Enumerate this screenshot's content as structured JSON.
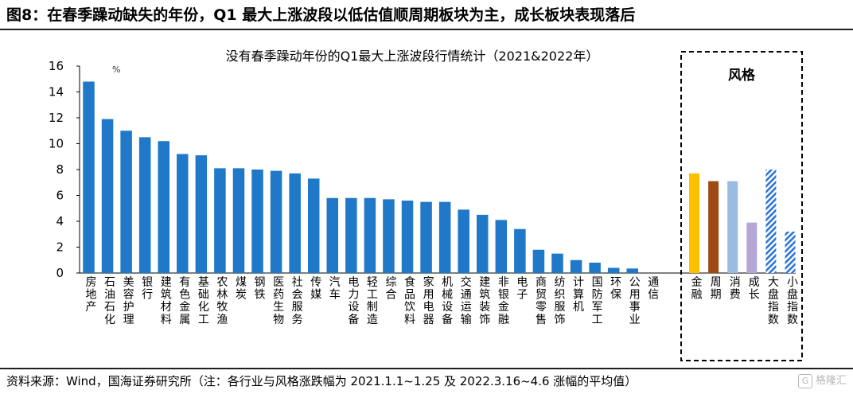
{
  "figure": {
    "title": "图8：在春季躁动缺失的年份，Q1 最大上涨波段以低估值顺周期板块为主，成长板块表现落后",
    "source": "资料来源：Wind，国海证券研究所（注：各行业与风格涨跌幅为 2021.1.1~1.25 及 2022.3.16~4.6 涨幅的平均值）",
    "watermark": "格隆汇"
  },
  "chart_data": {
    "type": "bar",
    "title": "没有春季躁动年份的Q1最大上涨波段行情统计（2021&2022年）",
    "ylabel": "%",
    "ylim": [
      0,
      16
    ],
    "yticks": [
      0,
      2,
      4,
      6,
      8,
      10,
      12,
      14,
      16
    ],
    "grid": false,
    "legend": "none",
    "categories": [
      "房地产",
      "石油石化",
      "美容护理",
      "银行",
      "建筑材料",
      "有色金属",
      "基础化工",
      "农林牧渔",
      "煤炭",
      "钢铁",
      "医药生物",
      "社会服务",
      "传媒",
      "汽车",
      "电力设备",
      "轻工制造",
      "综合",
      "食品饮料",
      "家用电器",
      "机械设备",
      "交通运输",
      "建筑装饰",
      "非银金融",
      "电子",
      "商贸零售",
      "纺织服饰",
      "计算机",
      "国防军工",
      "环保",
      "公用事业",
      "通信"
    ],
    "values": [
      14.8,
      11.9,
      11.0,
      10.5,
      10.2,
      9.2,
      9.1,
      8.1,
      8.1,
      8.0,
      7.9,
      7.7,
      7.3,
      5.8,
      5.8,
      5.8,
      5.7,
      5.6,
      5.5,
      5.5,
      4.9,
      4.5,
      4.1,
      3.4,
      1.8,
      1.5,
      1.0,
      0.8,
      0.4,
      0.35,
      0.0
    ],
    "bar_color": "#1f78c8",
    "style_group": {
      "label": "风格",
      "categories": [
        "金融",
        "周期",
        "消费",
        "成长",
        "大盘指数",
        "小盘指数"
      ],
      "values": [
        7.7,
        7.1,
        7.1,
        3.9,
        8.0,
        3.2
      ],
      "colors": [
        "#ffc000",
        "#9e4a14",
        "#9bbbe3",
        "#b4a7d6",
        "#2e75d6",
        "#2e75d6"
      ],
      "hatched": [
        false,
        false,
        false,
        false,
        true,
        true
      ]
    }
  }
}
